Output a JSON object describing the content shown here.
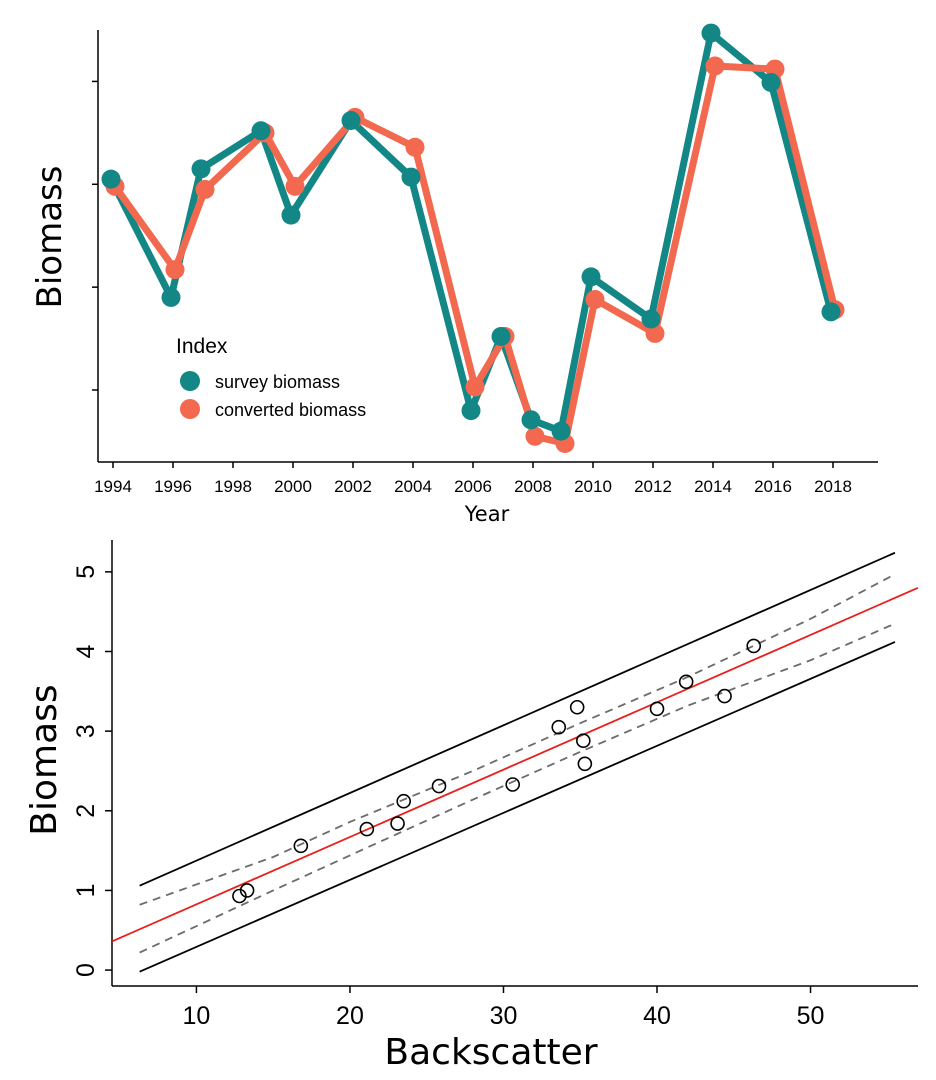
{
  "chart_data": [
    {
      "type": "line",
      "title": "",
      "xlabel": "Year",
      "ylabel": "Biomass",
      "x": [
        1994,
        1996,
        1997,
        1999,
        2000,
        2002,
        2004,
        2006,
        2007,
        2008,
        2009,
        2010,
        2012,
        2014,
        2016,
        2018
      ],
      "x_ticks": [
        1994,
        1996,
        1998,
        2000,
        2002,
        2004,
        2006,
        2008,
        2010,
        2012,
        2014,
        2016,
        2018
      ],
      "xlim": [
        1993.5,
        2019.5
      ],
      "ylim": [
        -0.2,
        4.0
      ],
      "y_ticks_unlabeled": [
        0.5,
        1.5,
        2.5,
        3.5
      ],
      "grid": false,
      "legend": {
        "title": "Index",
        "placement": "lower-left"
      },
      "series": [
        {
          "name": "survey biomass",
          "color": "#138686",
          "values": [
            2.55,
            1.4,
            2.65,
            3.02,
            2.2,
            3.12,
            2.57,
            0.3,
            1.02,
            0.21,
            0.1,
            1.6,
            1.19,
            3.97,
            3.49,
            1.26
          ]
        },
        {
          "name": "converted biomass",
          "color": "#f2694f",
          "values": [
            2.48,
            1.67,
            2.45,
            3.0,
            2.48,
            3.15,
            2.86,
            0.53,
            1.02,
            0.05,
            -0.02,
            1.38,
            1.05,
            3.65,
            3.62,
            1.28
          ]
        }
      ]
    },
    {
      "type": "scatter",
      "title": "",
      "xlabel": "Backscatter",
      "ylabel": "Biomass",
      "xlim": [
        4.5,
        57
      ],
      "ylim": [
        -0.2,
        5.4
      ],
      "x_ticks": [
        10,
        20,
        30,
        40,
        50
      ],
      "y_ticks": [
        0,
        1,
        2,
        3,
        4,
        5
      ],
      "grid": false,
      "points": [
        {
          "x": 12.8,
          "y": 0.93
        },
        {
          "x": 13.3,
          "y": 1.0
        },
        {
          "x": 16.8,
          "y": 1.56
        },
        {
          "x": 21.1,
          "y": 1.77
        },
        {
          "x": 23.1,
          "y": 1.84
        },
        {
          "x": 23.5,
          "y": 2.12
        },
        {
          "x": 25.8,
          "y": 2.31
        },
        {
          "x": 30.6,
          "y": 2.33
        },
        {
          "x": 33.6,
          "y": 3.05
        },
        {
          "x": 34.8,
          "y": 3.3
        },
        {
          "x": 35.2,
          "y": 2.88
        },
        {
          "x": 35.3,
          "y": 2.59
        },
        {
          "x": 40.0,
          "y": 3.28
        },
        {
          "x": 41.9,
          "y": 3.62
        },
        {
          "x": 44.4,
          "y": 3.44
        },
        {
          "x": 46.3,
          "y": 4.07
        }
      ],
      "fit_line": {
        "color": "#e8201c",
        "x": [
          4.5,
          57
        ],
        "y": [
          0.36,
          4.8
        ]
      },
      "confidence_band": {
        "color": "#6b6b6b",
        "style": "dashed",
        "x": [
          6.3,
          15,
          20,
          28,
          35,
          42,
          50,
          55.5
        ],
        "upper": [
          0.82,
          1.42,
          1.86,
          2.5,
          3.1,
          3.68,
          4.41,
          4.97
        ],
        "lower": [
          0.22,
          1.0,
          1.44,
          2.14,
          2.74,
          3.32,
          3.89,
          4.35
        ]
      },
      "prediction_band": {
        "color": "#000000",
        "style": "solid",
        "x": [
          6.3,
          55.5
        ],
        "upper": [
          1.06,
          5.24
        ],
        "lower": [
          -0.02,
          4.12
        ]
      }
    }
  ]
}
